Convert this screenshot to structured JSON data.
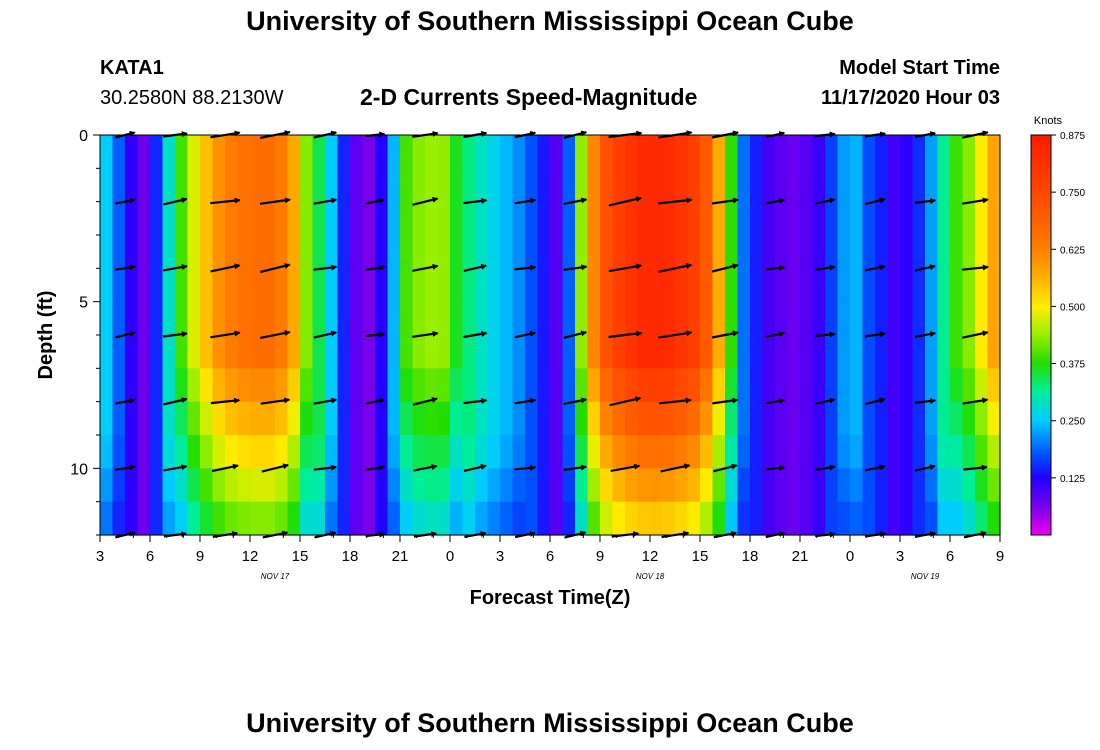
{
  "header": {
    "title": "University of Southern Mississippi Ocean Cube",
    "footer_title": "University of Southern Mississippi Ocean Cube",
    "station_id": "KATA1",
    "station_coords": "30.2580N 88.2130W",
    "plot_title": "2-D Currents Speed-Magnitude",
    "model_start_label": "Model Start Time",
    "model_start_value": "11/17/2020 Hour 03"
  },
  "chart_data": {
    "type": "heatmap",
    "title": "2-D Currents Speed-Magnitude",
    "xlabel": "Forecast Time(Z)",
    "ylabel": "Depth (ft)",
    "x_tick_labels": [
      "3",
      "6",
      "9",
      "12",
      "15",
      "18",
      "21",
      "0",
      "3",
      "6",
      "9",
      "12",
      "15",
      "18",
      "21",
      "0",
      "3",
      "6",
      "9"
    ],
    "x_range_hours": [
      0,
      54
    ],
    "date_labels": [
      {
        "text": "NOV 17",
        "hour": 10.5
      },
      {
        "text": "NOV 18",
        "hour": 33
      },
      {
        "text": "NOV 19",
        "hour": 49.5
      }
    ],
    "y_ticks": [
      0,
      5,
      10
    ],
    "y_tick_labels": [
      "0",
      "5",
      "10"
    ],
    "y_range_ft": [
      0,
      12
    ],
    "colorbar": {
      "units": "Knots",
      "range": [
        0,
        0.875
      ],
      "tick_values": [
        0.125,
        0.25,
        0.375,
        0.5,
        0.625,
        0.75,
        0.875
      ],
      "tick_labels": [
        "0.125",
        "0.250",
        "0.375",
        "0.500",
        "0.625",
        "0.750",
        "0.875"
      ]
    },
    "speed_profile": {
      "hours": [
        0,
        0.8,
        1.8,
        2.5,
        3.2,
        4.5,
        6,
        7.5,
        9,
        10.5,
        11.5,
        12.2,
        13.5,
        15,
        16,
        17.2,
        18.5,
        20.5,
        21.5,
        23,
        25,
        26.5,
        27.5,
        28.2,
        29,
        30,
        31.5,
        33,
        34.5,
        36,
        37,
        37.8,
        38.6,
        40,
        41.5,
        43,
        44.5,
        45.5,
        46.2,
        46.8,
        47.6,
        48.6,
        49.5,
        50.5,
        51.5,
        52.5,
        53.2,
        54
      ],
      "speeds": [
        0.28,
        0.22,
        0.12,
        0.06,
        0.12,
        0.35,
        0.52,
        0.63,
        0.66,
        0.66,
        0.6,
        0.45,
        0.3,
        0.1,
        0.05,
        0.15,
        0.42,
        0.45,
        0.35,
        0.28,
        0.22,
        0.15,
        0.08,
        0.2,
        0.48,
        0.7,
        0.8,
        0.84,
        0.82,
        0.76,
        0.6,
        0.4,
        0.2,
        0.1,
        0.07,
        0.1,
        0.22,
        0.24,
        0.17,
        0.15,
        0.1,
        0.12,
        0.18,
        0.3,
        0.4,
        0.45,
        0.55,
        0.6
      ]
    },
    "vector_rows_ft": [
      0,
      2,
      4,
      6,
      8,
      10,
      12
    ],
    "vector_columns_hours": [
      1.5,
      4.5,
      7.5,
      10.5,
      13.5,
      16.5,
      19.5,
      22.5,
      25.5,
      28.5,
      31.5,
      34.5,
      37.5,
      40.5,
      43.5,
      46.5,
      49.5,
      52.5
    ]
  }
}
